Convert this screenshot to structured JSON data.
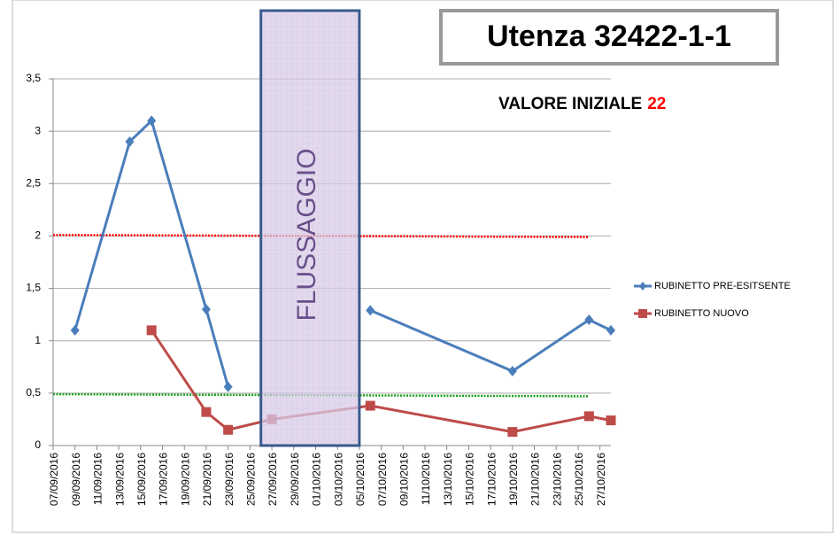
{
  "chart_data": {
    "type": "line",
    "title": "Utenza 32422-1-1",
    "annotation": {
      "text": "VALORE INIZIALE",
      "value": 22
    },
    "band": {
      "label": "FLUSSAGGIO",
      "x": [
        "26/09/2016",
        "05/10/2016"
      ]
    },
    "series": [
      {
        "name": "RUBINETTO PRE-ESITSENTE",
        "color": "#4a7ebb",
        "marker": "diamond",
        "x": [
          "09/09/2016",
          "14/09/2016",
          "16/09/2016",
          "21/09/2016",
          "23/09/2016",
          "27/09/2016",
          "06/10/2016",
          "19/10/2016",
          "26/10/2016",
          "28/10/2016"
        ],
        "values": [
          1.1,
          2.9,
          3.1,
          1.3,
          0.56,
          null,
          1.29,
          0.71,
          1.2,
          1.1
        ]
      },
      {
        "name": "RUBINETTO NUOVO",
        "color": "#be4b48",
        "marker": "square",
        "x": [
          "16/09/2016",
          "21/09/2016",
          "23/09/2016",
          "27/09/2016",
          "06/10/2016",
          "19/10/2016",
          "26/10/2016",
          "28/10/2016"
        ],
        "values": [
          1.1,
          0.32,
          0.15,
          0.25,
          0.38,
          0.13,
          0.28,
          0.24
        ]
      }
    ],
    "reference_lines": [
      {
        "color": "#ff0000",
        "x": [
          "07/09/2016",
          "26/10/2016"
        ],
        "values": [
          2.01,
          1.99
        ]
      },
      {
        "color": "#1aa01a",
        "x": [
          "07/09/2016",
          "26/10/2016"
        ],
        "values": [
          0.49,
          0.47
        ]
      }
    ],
    "xlim": [
      "07/09/2016",
      "28/10/2016"
    ],
    "xticks": [
      "07/09/2016",
      "09/09/2016",
      "11/09/2016",
      "13/09/2016",
      "15/09/2016",
      "17/09/2016",
      "19/09/2016",
      "21/09/2016",
      "23/09/2016",
      "25/09/2016",
      "27/09/2016",
      "29/09/2016",
      "01/10/2016",
      "03/10/2016",
      "05/10/2016",
      "07/10/2016",
      "09/10/2016",
      "11/10/2016",
      "13/10/2016",
      "15/10/2016",
      "17/10/2016",
      "19/10/2016",
      "21/10/2016",
      "23/10/2016",
      "25/10/2016",
      "27/10/2016"
    ],
    "ylim": [
      0,
      3.5
    ],
    "yticks": [
      0,
      {
        "value": 0.5,
        "label": "0,5"
      },
      1,
      {
        "value": 1.5,
        "label": "1,5"
      },
      2,
      {
        "value": 2.5,
        "label": "2,5"
      },
      3,
      {
        "value": 3.5,
        "label": "3,5"
      }
    ],
    "grid": true,
    "legend": "right"
  }
}
